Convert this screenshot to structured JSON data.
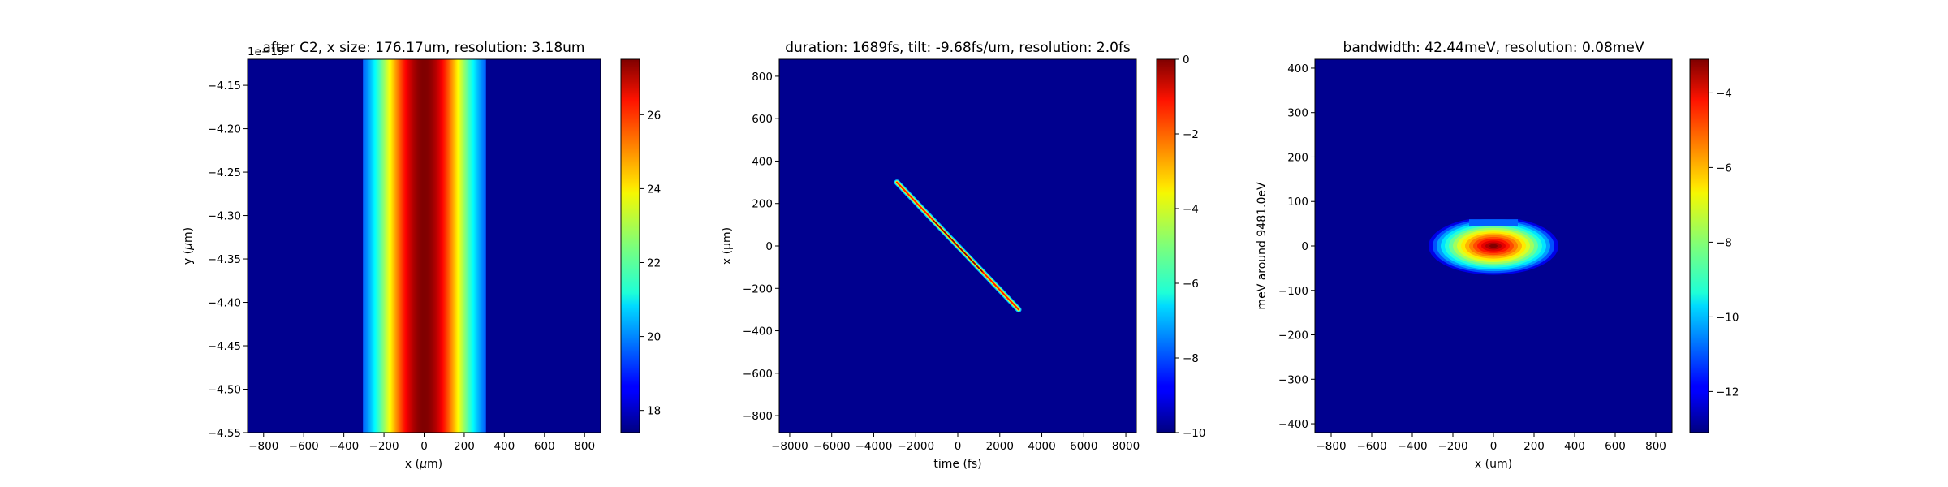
{
  "chart_data": [
    {
      "type": "heatmap",
      "title": "after C2, x size: 176.17um, resolution: 3.18um",
      "xlabel": "x ($\\mu$m)",
      "ylabel": "y ($\\mu$m)",
      "y_offset_text": "1e−15",
      "xlim": [
        -880,
        880
      ],
      "ylim": [
        -4.55,
        -4.12
      ],
      "xticks": [
        -800,
        -600,
        -400,
        -200,
        0,
        200,
        400,
        600,
        800
      ],
      "xtick_labels": [
        "−800",
        "−600",
        "−400",
        "−200",
        "0",
        "200",
        "400",
        "600",
        "800"
      ],
      "yticks": [
        -4.15,
        -4.2,
        -4.25,
        -4.3,
        -4.35,
        -4.4,
        -4.45,
        -4.5,
        -4.55
      ],
      "ytick_labels": [
        "−4.15",
        "−4.20",
        "−4.25",
        "−4.30",
        "−4.35",
        "−4.40",
        "−4.45",
        "−4.50",
        "−4.55"
      ],
      "colormap": "jet",
      "colorbar": {
        "range": [
          17.4,
          27.5
        ],
        "ticks": [
          18,
          20,
          22,
          24,
          26
        ],
        "tick_labels": [
          "18",
          "20",
          "22",
          "24",
          "26"
        ]
      },
      "beam": {
        "shape": "vertical band, constant in y",
        "center_x": 0,
        "gaussian_sigma_x": 175,
        "clip_half_width_x": 305,
        "peak_value": 27.5,
        "background_value": 17.4
      }
    },
    {
      "type": "heatmap",
      "title": "duration: 1689fs, tilt: -9.68fs/um, resolution: 2.0fs",
      "xlabel": "time (fs)",
      "ylabel": "x (μm)",
      "xlim": [
        -8500,
        8500
      ],
      "ylim": [
        -880,
        880
      ],
      "xticks": [
        -8000,
        -6000,
        -4000,
        -2000,
        0,
        2000,
        4000,
        6000,
        8000
      ],
      "xtick_labels": [
        "−8000",
        "−6000",
        "−4000",
        "−2000",
        "0",
        "2000",
        "4000",
        "6000",
        "8000"
      ],
      "yticks": [
        800,
        600,
        400,
        200,
        0,
        -200,
        -400,
        -600,
        -800
      ],
      "ytick_labels": [
        "800",
        "600",
        "400",
        "200",
        "0",
        "−200",
        "−400",
        "−600",
        "−800"
      ],
      "colormap": "jet",
      "colorbar": {
        "range": [
          -10,
          0
        ],
        "ticks": [
          0,
          -2,
          -4,
          -6,
          -8,
          -10
        ],
        "tick_labels": [
          "0",
          "−2",
          "−4",
          "−6",
          "−8",
          "−10"
        ]
      },
      "pulse": {
        "shape": "tilted streak",
        "start": {
          "time": -2900,
          "x": 300
        },
        "end": {
          "time": 2900,
          "x": -300
        },
        "peak_value": 0,
        "background_value": -10
      }
    },
    {
      "type": "heatmap",
      "title": "bandwidth: 42.44meV, resolution: 0.08meV",
      "xlabel": "x (um)",
      "ylabel": "meV around 9481.0eV",
      "xlim": [
        -880,
        880
      ],
      "ylim": [
        -420,
        420
      ],
      "xticks": [
        -800,
        -600,
        -400,
        -200,
        0,
        200,
        400,
        600,
        800
      ],
      "xtick_labels": [
        "−800",
        "−600",
        "−400",
        "−200",
        "0",
        "200",
        "400",
        "600",
        "800"
      ],
      "yticks": [
        400,
        300,
        200,
        100,
        0,
        -100,
        -200,
        -300,
        -400
      ],
      "ytick_labels": [
        "400",
        "300",
        "200",
        "100",
        "0",
        "−100",
        "−200",
        "−300",
        "−400"
      ],
      "colormap": "jet",
      "colorbar": {
        "range": [
          -13.1,
          -3.1
        ],
        "ticks": [
          -4,
          -6,
          -8,
          -10,
          -12
        ],
        "tick_labels": [
          "−4",
          "−6",
          "−8",
          "−10",
          "−12"
        ]
      },
      "spot": {
        "shape": "ellipse",
        "center": {
          "x": 0,
          "meV": 0
        },
        "semi_axis_x": 320,
        "semi_axis_meV": 65,
        "flat_top_at_meV": 60,
        "flat_top_x_range": [
          -120,
          120
        ],
        "peak_value": -3.1,
        "background_value": -13.1
      }
    }
  ]
}
